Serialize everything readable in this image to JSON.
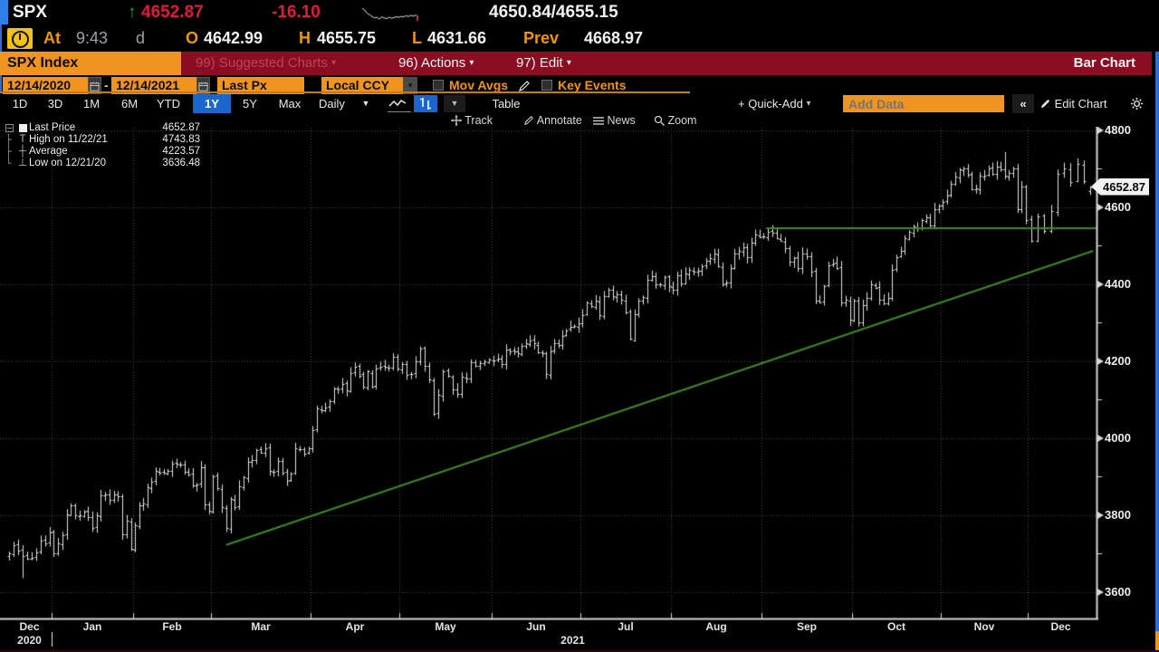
{
  "window": {
    "ticker": "SPX",
    "last_price": "4652.87",
    "change": "-16.10",
    "up_arrow": "↑",
    "bid_ask": "4650.84/4655.15",
    "at_label": "At",
    "time": "9:43",
    "session": "d",
    "open_label": "O",
    "open": "4642.99",
    "high_label": "H",
    "high": "4655.75",
    "low_label": "L",
    "low": "4631.66",
    "prev_label": "Prev",
    "prev": "4668.97"
  },
  "menu_bar": {
    "security_title": "SPX Index",
    "suggested_charts": "99) Suggested Charts",
    "actions": "96) Actions",
    "edit": "97) Edit",
    "function_name": "Bar Chart"
  },
  "controls": {
    "date_from": "12/14/2020",
    "date_sep": "-",
    "date_to": "12/14/2021",
    "price_field": "Last Px",
    "currency": "Local CCY",
    "mov_avgs_label": "Mov Avgs",
    "key_events_label": "Key Events"
  },
  "toolbar": {
    "ranges": [
      "1D",
      "3D",
      "1M",
      "6M",
      "YTD",
      "1Y",
      "5Y",
      "Max"
    ],
    "active_range": "1Y",
    "period": "Daily",
    "table_label": "Table",
    "quick_add_label": "+ Quick-Add",
    "add_data_placeholder": "Add Data",
    "collapse_label": "«",
    "edit_chart_label": "Edit Chart",
    "track_label": "Track",
    "annotate_label": "Annotate",
    "news_label": "News",
    "zoom_label": "Zoom"
  },
  "chart": {
    "legend": [
      {
        "label": "Last Price",
        "value": "4652.87"
      },
      {
        "label": "High on 11/22/21",
        "value": "4743.83"
      },
      {
        "label": "Average",
        "value": "4223.57"
      },
      {
        "label": "Low on 12/21/20",
        "value": "3636.48"
      }
    ],
    "last_price_badge": "4652.87",
    "colors": {
      "bar": "#e3e3e3",
      "grid": "#4a4a4e",
      "axis": "#d6d6d6",
      "trendline": "#3d8b22",
      "accent_orange": "#ef9421",
      "accent_blue": "#1a66cc",
      "down_red": "#e1193e",
      "up_green": "#00b259"
    },
    "sparkline": [
      4666,
      4661,
      4652,
      4648,
      4643,
      4639,
      4641,
      4636,
      4642,
      4639,
      4637,
      4641,
      4638,
      4640,
      4642,
      4641,
      4643,
      4642,
      4645,
      4643,
      4646,
      4644,
      4647,
      4641
    ]
  },
  "chart_data": {
    "type": "bar",
    "subtype": "ohlc-daily",
    "title": "SPX Index 12/14/2020 - 12/14/2021, Last Px, Daily",
    "ylim": [
      3532,
      4807
    ],
    "y_axis": {
      "major_ticks": [
        4800,
        4600,
        4400,
        4200,
        4000,
        3800,
        3600
      ],
      "minor_ticks": [
        4700,
        4500,
        4300,
        4100,
        3900,
        3700
      ]
    },
    "months": [
      {
        "label": "Dec",
        "year": "2020",
        "days": 10
      },
      {
        "label": "Jan",
        "year": "2021",
        "days": 19
      },
      {
        "label": "Feb",
        "days": 19
      },
      {
        "label": "Mar",
        "days": 23
      },
      {
        "label": "Apr",
        "days": 21
      },
      {
        "label": "May",
        "days": 20
      },
      {
        "label": "Jun",
        "days": 22
      },
      {
        "label": "Jul",
        "days": 21
      },
      {
        "label": "Aug",
        "days": 22
      },
      {
        "label": "Sep",
        "days": 21
      },
      {
        "label": "Oct",
        "days": 21
      },
      {
        "label": "Nov",
        "days": 21
      },
      {
        "label": "Dec",
        "days": 10
      }
    ],
    "series": [
      {
        "name": "SPX Last Price",
        "closes": [
          3701,
          3722,
          3709,
          3694,
          3687,
          3690,
          3703,
          3735,
          3727,
          3756,
          3701,
          3727,
          3748,
          3803,
          3825,
          3800,
          3801,
          3810,
          3796,
          3768,
          3799,
          3852,
          3853,
          3841,
          3855,
          3850,
          3751,
          3787,
          3714,
          3774,
          3826,
          3830,
          3872,
          3887,
          3915,
          3911,
          3910,
          3916,
          3935,
          3933,
          3931,
          3914,
          3907,
          3877,
          3881,
          3925,
          3829,
          3811,
          3902,
          3870,
          3820,
          3768,
          3842,
          3821,
          3875,
          3899,
          3939,
          3943,
          3969,
          3963,
          3974,
          3915,
          3913,
          3940,
          3911,
          3889,
          3909,
          3975,
          3971,
          3959,
          3973,
          4020,
          4078,
          4074,
          4080,
          4097,
          4129,
          4128,
          4141,
          4124,
          4170,
          4185,
          4163,
          4135,
          4173,
          4135,
          4180,
          4187,
          4186,
          4183,
          4211,
          4181,
          4192,
          4164,
          4168,
          4201,
          4233,
          4188,
          4152,
          4063,
          4112,
          4174,
          4163,
          4127,
          4116,
          4159,
          4156,
          4197,
          4188,
          4196,
          4201,
          4204,
          4202,
          4208,
          4193,
          4230,
          4227,
          4227,
          4220,
          4239,
          4247,
          4255,
          4246,
          4224,
          4222,
          4166,
          4225,
          4246,
          4242,
          4266,
          4281,
          4290,
          4291,
          4298,
          4320,
          4352,
          4343,
          4358,
          4321,
          4369,
          4385,
          4369,
          4374,
          4360,
          4327,
          4258,
          4323,
          4358,
          4367,
          4412,
          4422,
          4401,
          4401,
          4419,
          4395,
          4387,
          4423,
          4403,
          4429,
          4437,
          4432,
          4436,
          4448,
          4461,
          4468,
          4480,
          4448,
          4400,
          4405,
          4442,
          4480,
          4486,
          4496,
          4470,
          4509,
          4529,
          4523,
          4524,
          4537,
          4535,
          4520,
          4514,
          4493,
          4459,
          4469,
          4443,
          4481,
          4474,
          4433,
          4358,
          4354,
          4396,
          4449,
          4455,
          4443,
          4353,
          4359,
          4308,
          4357,
          4300,
          4346,
          4364,
          4400,
          4391,
          4361,
          4351,
          4364,
          4438,
          4471,
          4486,
          4520,
          4536,
          4550,
          4545,
          4566,
          4575,
          4552,
          4596,
          4605,
          4614,
          4631,
          4661,
          4680,
          4698,
          4702,
          4685,
          4647,
          4649,
          4683,
          4683,
          4701,
          4688,
          4705,
          4698,
          4683,
          4690,
          4701,
          4595,
          4655,
          4567,
          4513,
          4577,
          4538,
          4591,
          4687,
          4701,
          4667,
          4712,
          4669,
          4652.87
        ]
      }
    ],
    "key_bars": [
      {
        "index": 3,
        "low": 3636.48,
        "note": "Low on 12/21/20"
      },
      {
        "index": 234,
        "high": 4743.83,
        "note": "High on 11/22/21"
      },
      {
        "index": 249,
        "open": 4642.99,
        "high": 4655.75,
        "low": 4631.66,
        "close": 4652.87,
        "note": "12/14/21 current bar"
      }
    ],
    "stats": {
      "high": 4743.83,
      "high_date": "11/22/21",
      "average": 4223.57,
      "low": 3636.48,
      "low_date": "12/21/20",
      "last": 4652.87
    },
    "trendlines": [
      {
        "kind": "horizontal",
        "price": 4546,
        "from_index": 178,
        "to_index": 250
      },
      {
        "kind": "segment",
        "from": {
          "index": 51,
          "price": 3723
        },
        "to": {
          "index": 249.5,
          "price": 4487
        }
      }
    ],
    "legend_position": "top-left",
    "grid": "dotted"
  }
}
